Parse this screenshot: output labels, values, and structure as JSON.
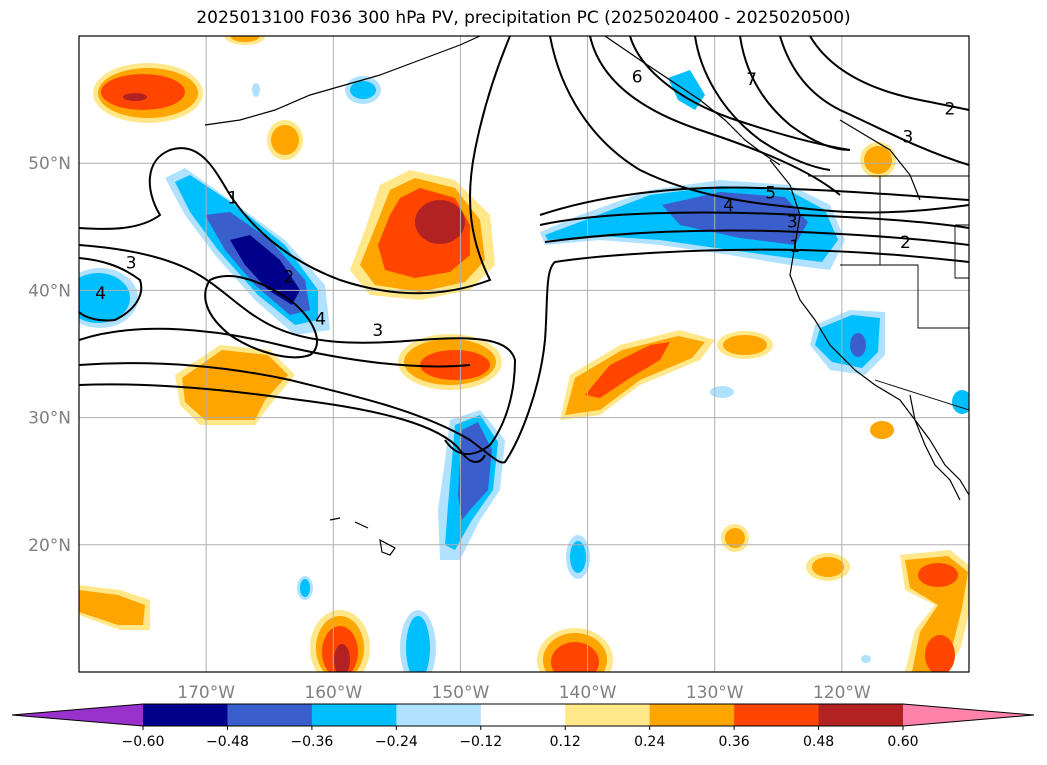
{
  "title": "2025013100 F036 300 hPa PV, precipitation PC (2025020400 - 2025020500)",
  "chart_data": {
    "type": "map",
    "title": "2025013100 F036 300 hPa PV, precipitation PC (2025020400 - 2025020500)",
    "grid": true,
    "xlim": [
      -180,
      -110
    ],
    "ylim": [
      10,
      60
    ],
    "lat_ticks": [
      {
        "lat": 50,
        "label": "50°N"
      },
      {
        "lat": 40,
        "label": "40°N"
      },
      {
        "lat": 30,
        "label": "30°N"
      },
      {
        "lat": 20,
        "label": "20°N"
      }
    ],
    "lon_ticks": [
      {
        "lon": -170,
        "label": "170°W"
      },
      {
        "lon": -160,
        "label": "160°W"
      },
      {
        "lon": -150,
        "label": "150°W"
      },
      {
        "lon": -140,
        "label": "140°W"
      },
      {
        "lon": -130,
        "label": "130°W"
      },
      {
        "lon": -120,
        "label": "120°W"
      }
    ],
    "colorbar": {
      "levels": [
        -0.6,
        -0.48,
        -0.36,
        -0.24,
        -0.12,
        0.12,
        0.24,
        0.36,
        0.48,
        0.6
      ],
      "tick_labels": [
        "−0.60",
        "−0.48",
        "−0.36",
        "−0.24",
        "−0.12",
        "0.12",
        "0.24",
        "0.36",
        "0.48",
        "0.60"
      ],
      "colors": [
        "#9932cc",
        "#00008b",
        "#3a5fcd",
        "#00bfff",
        "#b0e2ff",
        "#ffffff",
        "#ffe78a",
        "#ffa500",
        "#ff4500",
        "#b22222",
        "#ff82ab"
      ],
      "extend": "both"
    },
    "pv_contour_labels": [
      {
        "text": "1",
        "lon": -167.9,
        "lat": 47.3
      },
      {
        "text": "2",
        "lon": -163.5,
        "lat": 41.1
      },
      {
        "text": "3",
        "lon": -175.9,
        "lat": 42.2
      },
      {
        "text": "4",
        "lon": -178.3,
        "lat": 39.8
      },
      {
        "text": "4",
        "lon": -161.0,
        "lat": 37.8
      },
      {
        "text": "3",
        "lon": -156.5,
        "lat": 36.9
      },
      {
        "text": "6",
        "lon": -136.1,
        "lat": 56.8
      },
      {
        "text": "7",
        "lon": -127.1,
        "lat": 56.6
      },
      {
        "text": "2",
        "lon": -111.5,
        "lat": 54.3
      },
      {
        "text": "3",
        "lon": -114.8,
        "lat": 52.1
      },
      {
        "text": "5",
        "lon": -125.6,
        "lat": 47.7
      },
      {
        "text": "4",
        "lon": -128.9,
        "lat": 46.7
      },
      {
        "text": "3",
        "lon": -123.9,
        "lat": 45.4
      },
      {
        "text": "2",
        "lon": -115.0,
        "lat": 43.8
      },
      {
        "text": "1",
        "lon": -123.7,
        "lat": 43.5
      }
    ]
  }
}
